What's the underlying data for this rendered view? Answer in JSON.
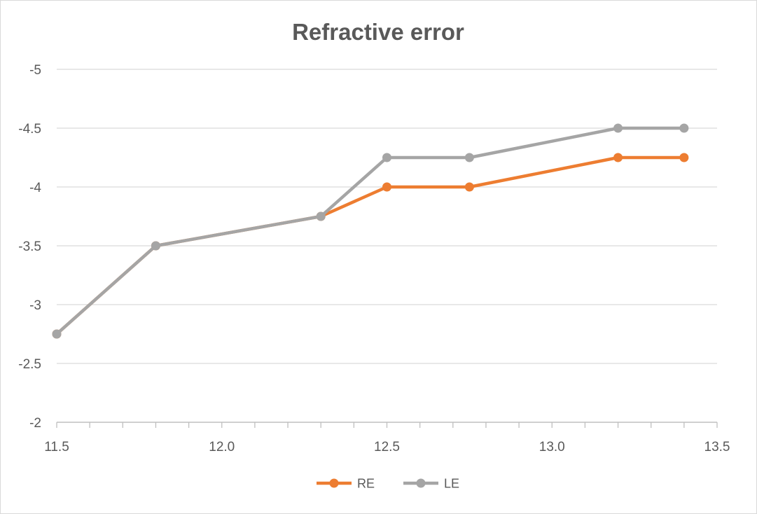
{
  "chart_data": {
    "type": "line",
    "title": "Refractive error",
    "xlabel": "",
    "ylabel": "",
    "xlim": [
      11.5,
      13.5
    ],
    "ylim": [
      -2,
      -5
    ],
    "x_ticks": [
      11.5,
      12.0,
      12.5,
      13.0,
      13.5
    ],
    "x_tick_labels": [
      "11.5",
      "12.0",
      "12.5",
      "13.0",
      "13.5"
    ],
    "x_minor_step": 0.1,
    "y_ticks": [
      -5,
      -4.5,
      -4,
      -3.5,
      -3,
      -2.5,
      -2
    ],
    "y_tick_labels": [
      "-5",
      "-4.5",
      "-4",
      "-3.5",
      "-3",
      "-2.5",
      "-2"
    ],
    "y_axis_reversed": true,
    "grid": "horizontal",
    "legend_position": "bottom",
    "series": [
      {
        "name": "RE",
        "color": "#ed7d31",
        "x": [
          11.5,
          11.8,
          12.3,
          12.5,
          12.75,
          13.2,
          13.4
        ],
        "y": [
          -2.75,
          -3.5,
          -3.75,
          -4,
          -4,
          -4.25,
          -4.25
        ]
      },
      {
        "name": "LE",
        "color": "#a5a5a5",
        "x": [
          11.5,
          11.8,
          12.3,
          12.5,
          12.75,
          13.2,
          13.4
        ],
        "y": [
          -2.75,
          -3.5,
          -3.75,
          -4.25,
          -4.25,
          -4.5,
          -4.5
        ]
      }
    ]
  },
  "colors": {
    "grid": "#d9d9d9",
    "axis": "#bfbfbf",
    "text": "#595959"
  }
}
